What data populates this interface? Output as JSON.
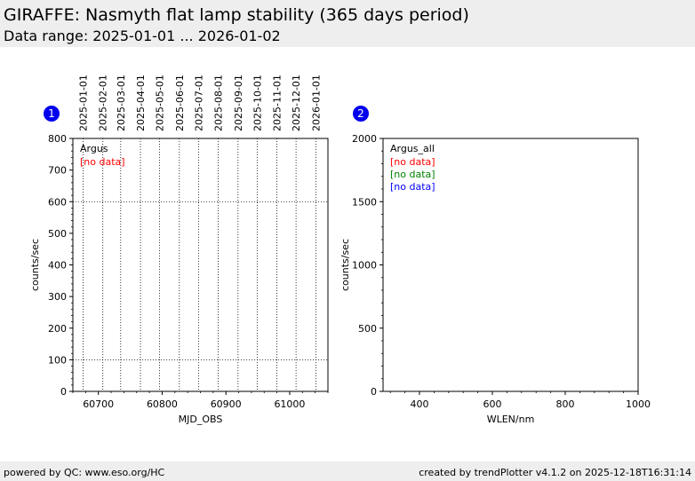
{
  "header": {
    "title": "GIRAFFE: Nasmyth flat lamp stability (365 days period)",
    "subtitle": "Data range: 2025-01-01 ... 2026-01-02"
  },
  "footer": {
    "left": "powered by QC: www.eso.org/HC",
    "right": "created by trendPlotter v4.1.2 on 2025-12-18T16:31:14"
  },
  "colors": {
    "badge": "#0000ee",
    "no_data_1": "#ff0000",
    "no_data_2": "#008000",
    "no_data_3": "#0000ff",
    "header_bg": "#eeeeee"
  },
  "chart_data": [
    {
      "type": "scatter",
      "badge": "1",
      "xlabel": "MJD_OBS",
      "ylabel": "counts/sec",
      "xlim": [
        60660,
        61060
      ],
      "ylim": [
        0,
        800
      ],
      "xticks": [
        60700,
        60800,
        60900,
        61000
      ],
      "yticks": [
        0,
        100,
        200,
        300,
        400,
        500,
        600,
        700,
        800
      ],
      "hlines": [
        100,
        600
      ],
      "date_ticks": [
        {
          "x": 60676,
          "label": "2025-01-01"
        },
        {
          "x": 60707,
          "label": "2025-02-01"
        },
        {
          "x": 60735,
          "label": "2025-03-01"
        },
        {
          "x": 60766,
          "label": "2025-04-01"
        },
        {
          "x": 60796,
          "label": "2025-05-01"
        },
        {
          "x": 60827,
          "label": "2025-06-01"
        },
        {
          "x": 60857,
          "label": "2025-07-01"
        },
        {
          "x": 60888,
          "label": "2025-08-01"
        },
        {
          "x": 60919,
          "label": "2025-09-01"
        },
        {
          "x": 60949,
          "label": "2025-10-01"
        },
        {
          "x": 60980,
          "label": "2025-11-01"
        },
        {
          "x": 61010,
          "label": "2025-12-01"
        },
        {
          "x": 61041,
          "label": "2026-01-01"
        }
      ],
      "legend_title": "Argus",
      "legend": [
        {
          "label": "[no data]",
          "color": "#ff0000"
        }
      ],
      "series": []
    },
    {
      "type": "scatter",
      "badge": "2",
      "xlabel": "WLEN/nm",
      "ylabel": "counts/sec",
      "xlim": [
        300,
        1000
      ],
      "ylim": [
        0,
        2000
      ],
      "xticks": [
        400,
        600,
        800,
        1000
      ],
      "yticks": [
        0,
        500,
        1000,
        1500,
        2000
      ],
      "hlines": [],
      "date_ticks": [],
      "legend_title": "Argus_all",
      "legend": [
        {
          "label": "[no data]",
          "color": "#ff0000"
        },
        {
          "label": "[no data]",
          "color": "#008000"
        },
        {
          "label": "[no data]",
          "color": "#0000ff"
        }
      ],
      "series": []
    }
  ]
}
